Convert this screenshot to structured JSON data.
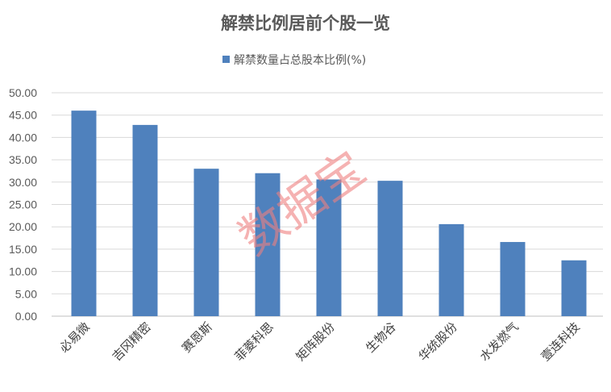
{
  "chart_data": {
    "type": "bar",
    "title": "解禁比例居前个股一览",
    "categories": [
      "必易微",
      "吉冈精密",
      "赛恩斯",
      "菲菱科思",
      "矩阵股份",
      "生物谷",
      "华统股份",
      "水发燃气",
      "壹连科技"
    ],
    "series": [
      {
        "name": "解禁数量占总股本比例(%)",
        "values": [
          46.0,
          42.8,
          33.0,
          32.0,
          30.6,
          30.3,
          20.6,
          16.6,
          12.5
        ],
        "color": "#4f81bd"
      }
    ],
    "ylim": [
      0,
      50
    ],
    "yticks": [
      "0.00",
      "5.00",
      "10.00",
      "15.00",
      "20.00",
      "25.00",
      "30.00",
      "35.00",
      "40.00",
      "45.00",
      "50.00"
    ],
    "grid": true,
    "legend_position": "top",
    "xlabel": "",
    "ylabel": "",
    "watermark": "数据宝"
  }
}
